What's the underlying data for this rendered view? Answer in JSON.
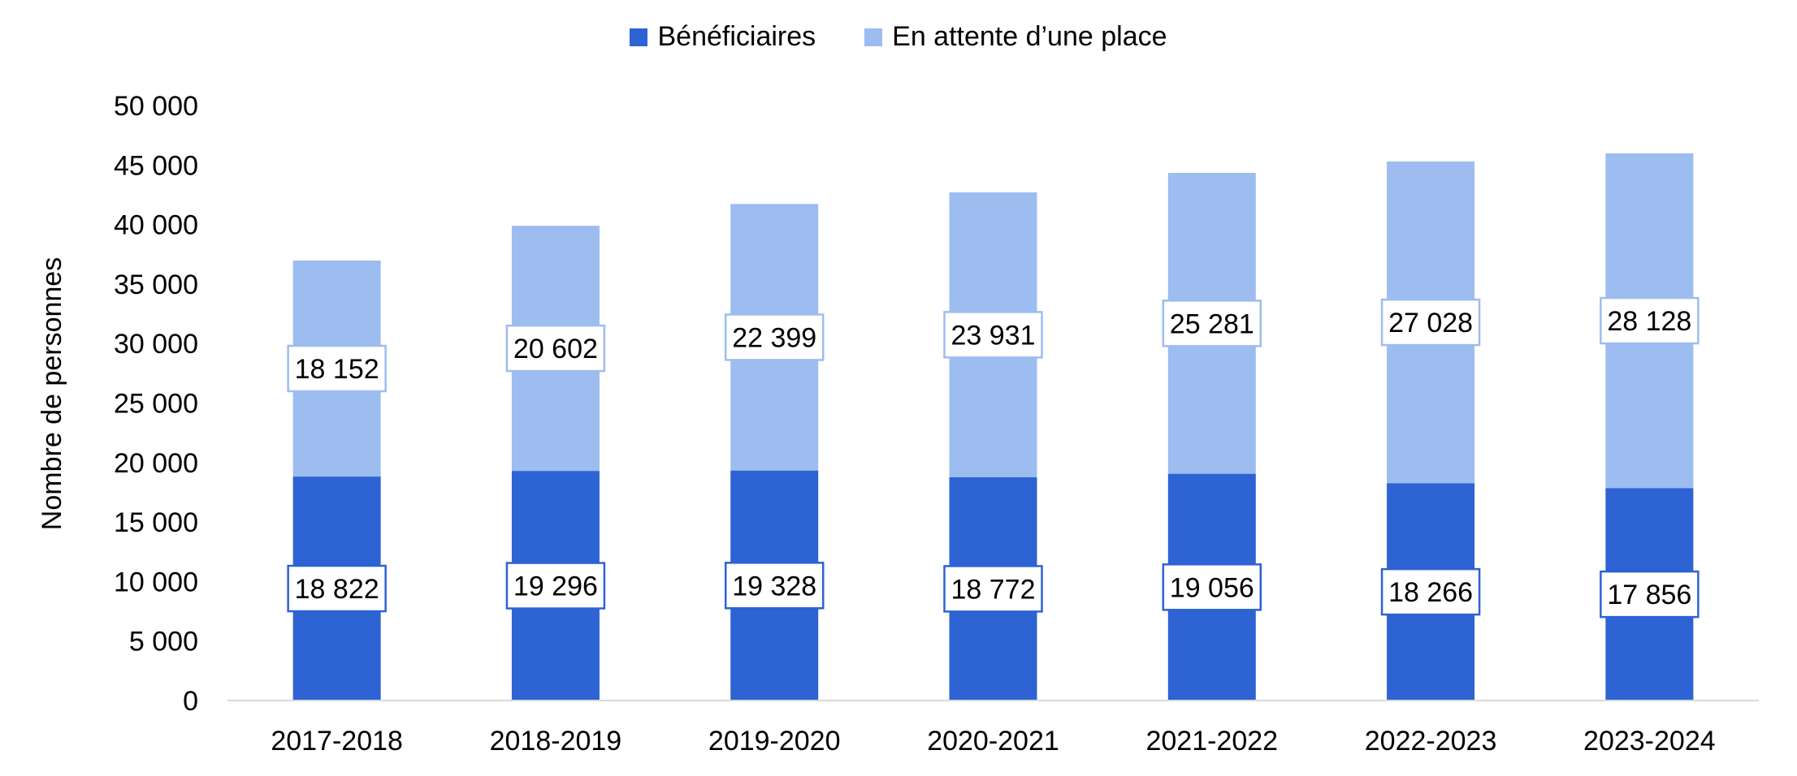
{
  "chart_data": {
    "type": "bar",
    "stacked": true,
    "title": "",
    "xlabel": "",
    "ylabel": "Nombre de personnes",
    "ylim": [
      0,
      50000
    ],
    "yticks": [
      "0",
      "5 000",
      "10 000",
      "15 000",
      "20 000",
      "25 000",
      "30 000",
      "35 000",
      "40 000",
      "45 000",
      "50 000"
    ],
    "categories": [
      "2017-2018",
      "2018-2019",
      "2019-2020",
      "2020-2021",
      "2021-2022",
      "2022-2023",
      "2023-2024"
    ],
    "series": [
      {
        "name": "Bénéficiaires",
        "color": "#2d63d2",
        "values": [
          18822,
          19296,
          19328,
          18772,
          19056,
          18266,
          17856
        ],
        "labels": [
          "18 822",
          "19 296",
          "19 328",
          "18 772",
          "19 056",
          "18 266",
          "17 856"
        ]
      },
      {
        "name": "En attente d’une place",
        "color": "#9dbcf0",
        "values": [
          18152,
          20602,
          22399,
          23931,
          25281,
          27028,
          28128
        ],
        "labels": [
          "18 152",
          "20 602",
          "22 399",
          "23 931",
          "25 281",
          "27 028",
          "28 128"
        ]
      }
    ],
    "grid": false,
    "legend": "top-center"
  }
}
